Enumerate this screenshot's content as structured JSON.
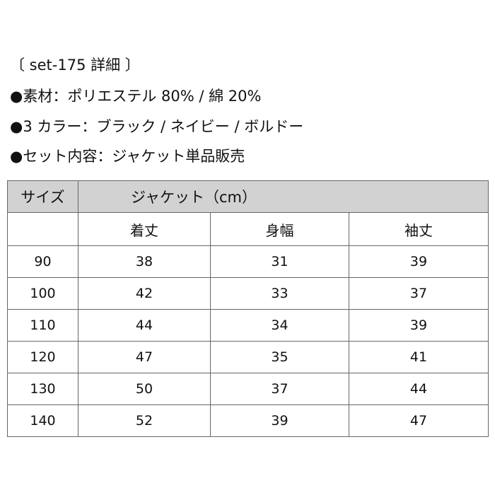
{
  "title": "〔 set-175 詳細 〕",
  "details": [
    "●素材：ポリエステル 80% / 綿 20%",
    "●3 カラー：ブラック / ネイビー / ボルドー",
    "●セット内容：ジャケット単品販売"
  ],
  "table": {
    "size_header": "サイズ",
    "group_header": "ジャケット（cm）",
    "columns": [
      "着丈",
      "身幅",
      "袖丈"
    ],
    "rows": [
      {
        "size": "90",
        "values": [
          "38",
          "31",
          "39"
        ]
      },
      {
        "size": "100",
        "values": [
          "42",
          "33",
          "37"
        ]
      },
      {
        "size": "110",
        "values": [
          "44",
          "34",
          "39"
        ]
      },
      {
        "size": "120",
        "values": [
          "47",
          "35",
          "41"
        ]
      },
      {
        "size": "130",
        "values": [
          "50",
          "37",
          "44"
        ]
      },
      {
        "size": "140",
        "values": [
          "52",
          "39",
          "47"
        ]
      }
    ],
    "header_color": "#d2d2d2"
  }
}
